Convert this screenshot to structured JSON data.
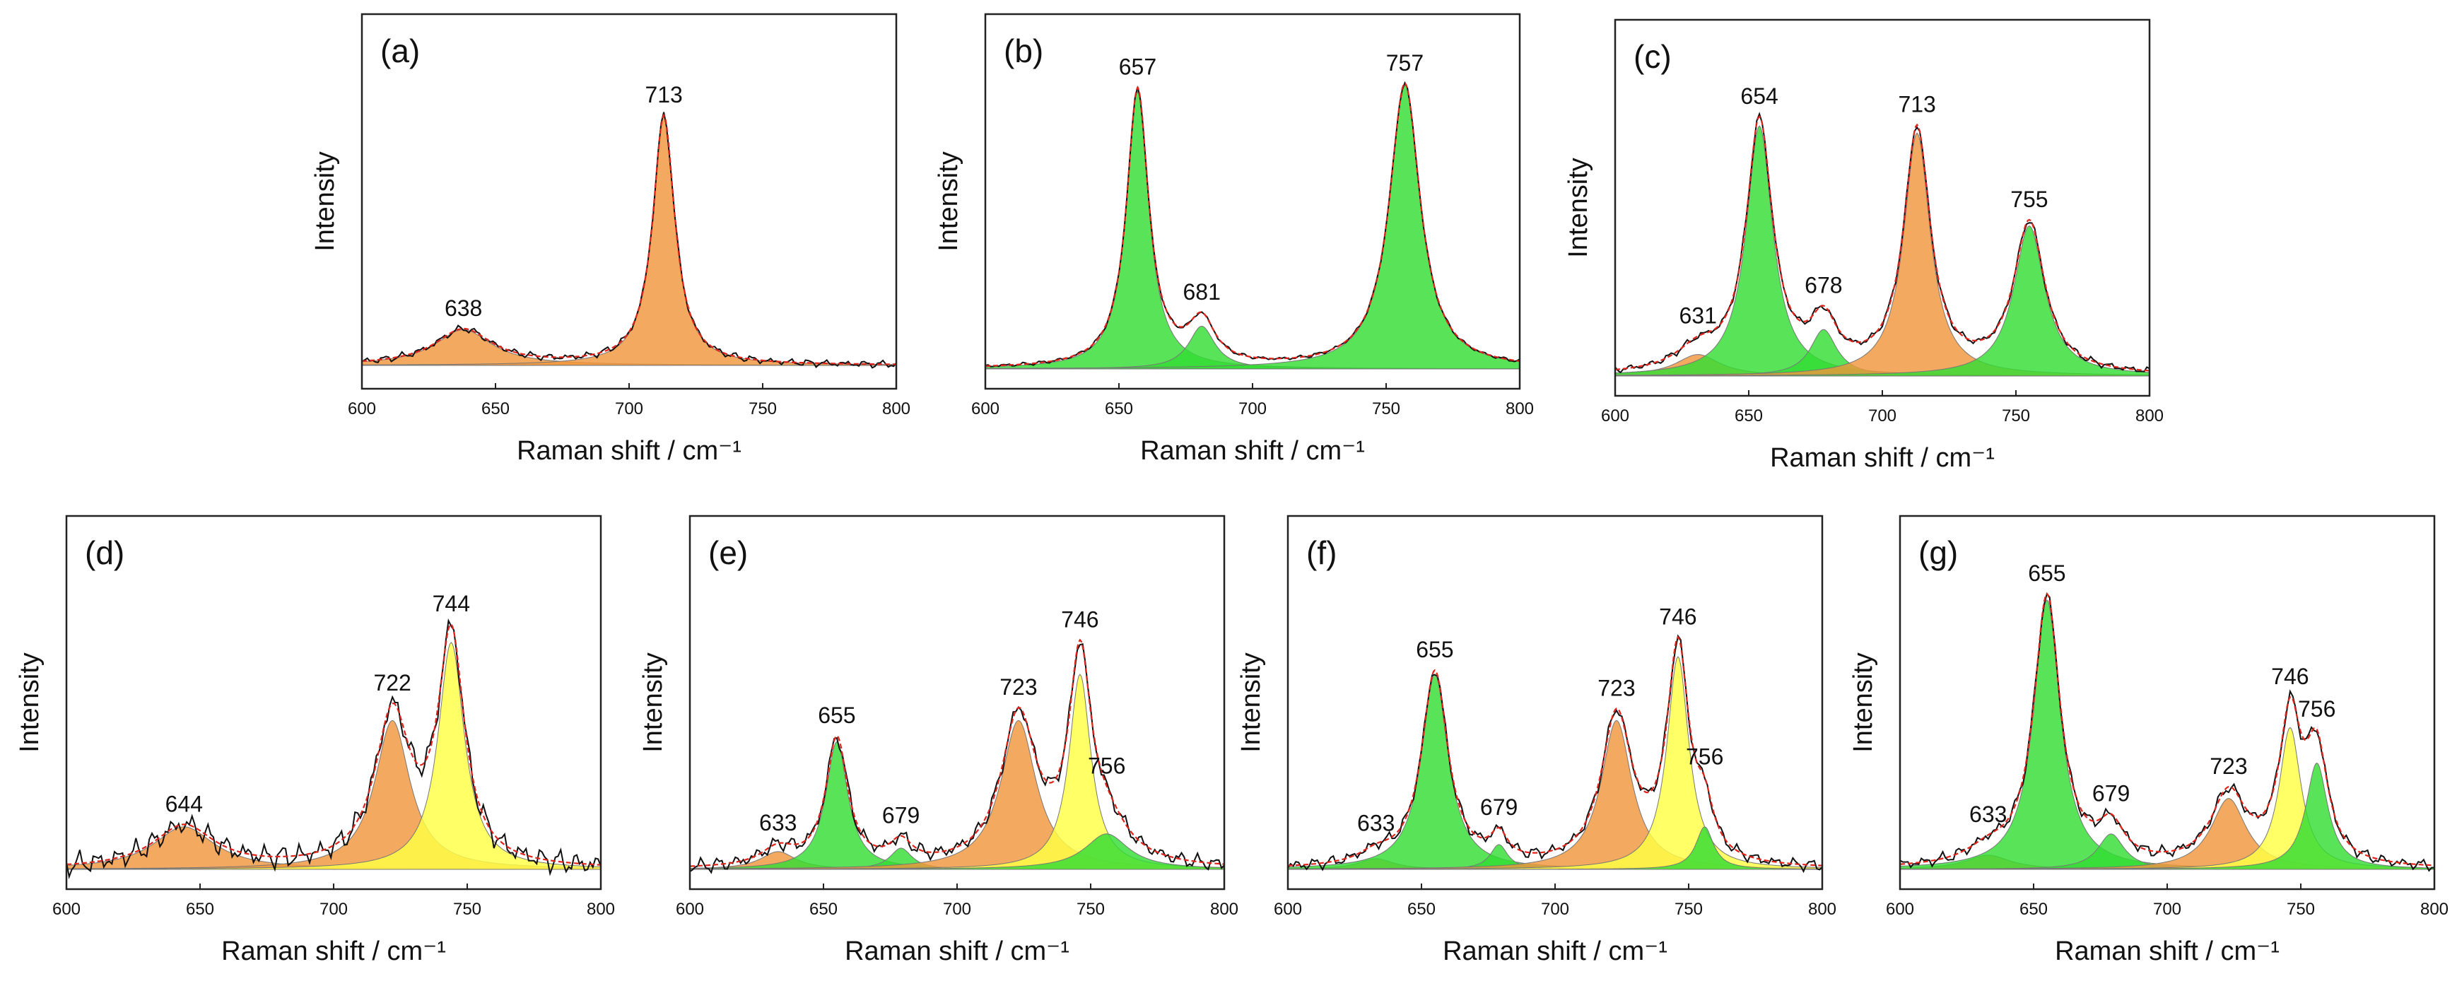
{
  "chart_data": [
    {
      "type": "area",
      "panel_label": "(a)",
      "xlabel": "Raman shift / cm⁻¹",
      "ylabel": "Intensity",
      "xlim": [
        600,
        800
      ],
      "ticks": [
        "600",
        "650",
        "700",
        "750",
        "800"
      ],
      "baseline": 0.03,
      "noise": 0.012,
      "peaks": [
        {
          "center": 638,
          "label": "638",
          "color": "#f0963c",
          "amp": 0.1,
          "width": 13
        },
        {
          "center": 713,
          "label": "713",
          "color": "#f0963c",
          "amp": 0.7,
          "width": 5
        }
      ]
    },
    {
      "type": "area",
      "panel_label": "(b)",
      "xlabel": "Raman shift / cm⁻¹",
      "ylabel": "Intensity",
      "xlim": [
        600,
        800
      ],
      "ticks": [
        "600",
        "650",
        "700",
        "750",
        "800"
      ],
      "baseline": 0.02,
      "noise": 0.006,
      "peaks": [
        {
          "center": 657,
          "label": "657",
          "color": "#33dd33",
          "amp": 0.78,
          "width": 5
        },
        {
          "center": 681,
          "label": "681",
          "color": "#33dd33",
          "amp": 0.12,
          "width": 6
        },
        {
          "center": 757,
          "label": "757",
          "color": "#33dd33",
          "amp": 0.8,
          "width": 7
        }
      ]
    },
    {
      "type": "area",
      "panel_label": "(c)",
      "xlabel": "Raman shift / cm⁻¹",
      "ylabel": "Intensity",
      "xlim": [
        600,
        800
      ],
      "ticks": [
        "600",
        "650",
        "700",
        "750",
        "800"
      ],
      "baseline": 0.02,
      "noise": 0.012,
      "peaks": [
        {
          "center": 631,
          "label": "631",
          "color": "#f0963c",
          "amp": 0.06,
          "width": 10
        },
        {
          "center": 654,
          "label": "654",
          "color": "#33dd33",
          "amp": 0.7,
          "width": 6
        },
        {
          "center": 678,
          "label": "678",
          "color": "#33dd33",
          "amp": 0.13,
          "width": 6
        },
        {
          "center": 713,
          "label": "713",
          "color": "#f0963c",
          "amp": 0.68,
          "width": 6
        },
        {
          "center": 755,
          "label": "755",
          "color": "#33dd33",
          "amp": 0.42,
          "width": 7
        }
      ]
    },
    {
      "type": "area",
      "panel_label": "(d)",
      "xlabel": "Raman shift / cm⁻¹",
      "ylabel": "Intensity",
      "xlim": [
        600,
        800
      ],
      "ticks": [
        "600",
        "650",
        "700",
        "750",
        "800"
      ],
      "baseline": 0.02,
      "noise": 0.04,
      "peaks": [
        {
          "center": 644,
          "label": "644",
          "color": "#f0963c",
          "amp": 0.12,
          "width": 14
        },
        {
          "center": 722,
          "label": "722",
          "color": "#f0963c",
          "amp": 0.42,
          "width": 8
        },
        {
          "center": 744,
          "label": "744",
          "color": "#ffff44",
          "amp": 0.64,
          "width": 6
        }
      ]
    },
    {
      "type": "area",
      "panel_label": "(e)",
      "xlabel": "Raman shift / cm⁻¹",
      "ylabel": "Intensity",
      "xlim": [
        600,
        800
      ],
      "ticks": [
        "600",
        "650",
        "700",
        "750",
        "800"
      ],
      "baseline": 0.02,
      "noise": 0.025,
      "peaks": [
        {
          "center": 633,
          "label": "633",
          "color": "#f0963c",
          "amp": 0.05,
          "width": 8
        },
        {
          "center": 655,
          "label": "655",
          "color": "#33dd33",
          "amp": 0.36,
          "width": 5
        },
        {
          "center": 679,
          "label": "679",
          "color": "#33dd33",
          "amp": 0.06,
          "width": 5
        },
        {
          "center": 723,
          "label": "723",
          "color": "#f0963c",
          "amp": 0.42,
          "width": 8
        },
        {
          "center": 746,
          "label": "746",
          "color": "#ffff44",
          "amp": 0.55,
          "width": 5
        },
        {
          "center": 756,
          "label": "756",
          "color": "#33dd33",
          "amp": 0.1,
          "width": 10
        }
      ]
    },
    {
      "type": "area",
      "panel_label": "(f)",
      "xlabel": "Raman shift / cm⁻¹",
      "ylabel": "Intensity",
      "xlim": [
        600,
        800
      ],
      "ticks": [
        "600",
        "650",
        "700",
        "750",
        "800"
      ],
      "baseline": 0.02,
      "noise": 0.02,
      "peaks": [
        {
          "center": 633,
          "label": "633",
          "color": "#f0963c",
          "amp": 0.03,
          "width": 8
        },
        {
          "center": 655,
          "label": "655",
          "color": "#33dd33",
          "amp": 0.55,
          "width": 6
        },
        {
          "center": 679,
          "label": "679",
          "color": "#33dd33",
          "amp": 0.07,
          "width": 4
        },
        {
          "center": 723,
          "label": "723",
          "color": "#f0963c",
          "amp": 0.42,
          "width": 7
        },
        {
          "center": 746,
          "label": "746",
          "color": "#ffff44",
          "amp": 0.6,
          "width": 5
        },
        {
          "center": 756,
          "label": "756",
          "color": "#33dd33",
          "amp": 0.12,
          "width": 4
        }
      ]
    },
    {
      "type": "area",
      "panel_label": "(g)",
      "xlabel": "Raman shift / cm⁻¹",
      "ylabel": "Intensity",
      "xlim": [
        600,
        800
      ],
      "ticks": [
        "600",
        "650",
        "700",
        "750",
        "800"
      ],
      "baseline": 0.02,
      "noise": 0.02,
      "peaks": [
        {
          "center": 633,
          "label": "633",
          "color": "#f0963c",
          "amp": 0.04,
          "width": 10
        },
        {
          "center": 655,
          "label": "655",
          "color": "#33dd33",
          "amp": 0.76,
          "width": 6
        },
        {
          "center": 679,
          "label": "679",
          "color": "#33dd33",
          "amp": 0.1,
          "width": 6
        },
        {
          "center": 723,
          "label": "723",
          "color": "#f0963c",
          "amp": 0.2,
          "width": 8
        },
        {
          "center": 746,
          "label": "746",
          "color": "#ffff44",
          "amp": 0.4,
          "width": 5
        },
        {
          "center": 756,
          "label": "756",
          "color": "#33dd33",
          "amp": 0.3,
          "width": 5
        }
      ]
    }
  ]
}
